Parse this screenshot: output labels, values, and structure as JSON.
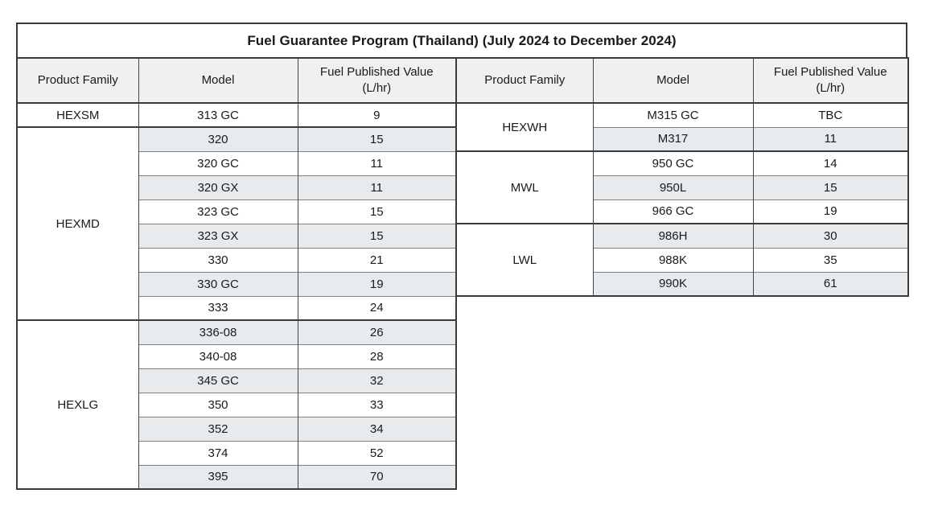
{
  "title": "Fuel Guarantee Program (Thailand) (July 2024 to December 2024)",
  "column_headers": [
    "Product Family",
    "Model",
    "Fuel Published Value (L/hr)"
  ],
  "tables": [
    {
      "id": "left",
      "groups": [
        {
          "family": "HEXSM",
          "rows": [
            {
              "model": "313 GC",
              "value": "9"
            }
          ]
        },
        {
          "family": "HEXMD",
          "rows": [
            {
              "model": "320",
              "value": "15"
            },
            {
              "model": "320 GC",
              "value": "11"
            },
            {
              "model": "320 GX",
              "value": "11"
            },
            {
              "model": "323 GC",
              "value": "15"
            },
            {
              "model": "323 GX",
              "value": "15"
            },
            {
              "model": "330",
              "value": "21"
            },
            {
              "model": "330 GC",
              "value": "19"
            },
            {
              "model": "333",
              "value": "24"
            }
          ]
        },
        {
          "family": "HEXLG",
          "rows": [
            {
              "model": "336-08",
              "value": "26"
            },
            {
              "model": "340-08",
              "value": "28"
            },
            {
              "model": "345 GC",
              "value": "32"
            },
            {
              "model": "350",
              "value": "33"
            },
            {
              "model": "352",
              "value": "34"
            },
            {
              "model": "374",
              "value": "52"
            },
            {
              "model": "395",
              "value": "70"
            }
          ]
        }
      ]
    },
    {
      "id": "right",
      "groups": [
        {
          "family": "HEXWH",
          "rows": [
            {
              "model": "M315 GC",
              "value": "TBC"
            },
            {
              "model": "M317",
              "value": "11"
            }
          ]
        },
        {
          "family": "MWL",
          "rows": [
            {
              "model": "950 GC",
              "value": "14"
            },
            {
              "model": "950L",
              "value": "15"
            },
            {
              "model": "966 GC",
              "value": "19"
            }
          ]
        },
        {
          "family": "LWL",
          "rows": [
            {
              "model": "986H",
              "value": "30"
            },
            {
              "model": "988K",
              "value": "35"
            },
            {
              "model": "990K",
              "value": "61"
            }
          ]
        }
      ]
    }
  ],
  "colors": {
    "band_row": "#e8ebee",
    "header_bg": "#eef0f1",
    "border_dark": "#3a3a3a",
    "border_light": "#7f7f7f",
    "text": "#1a1a1a"
  }
}
